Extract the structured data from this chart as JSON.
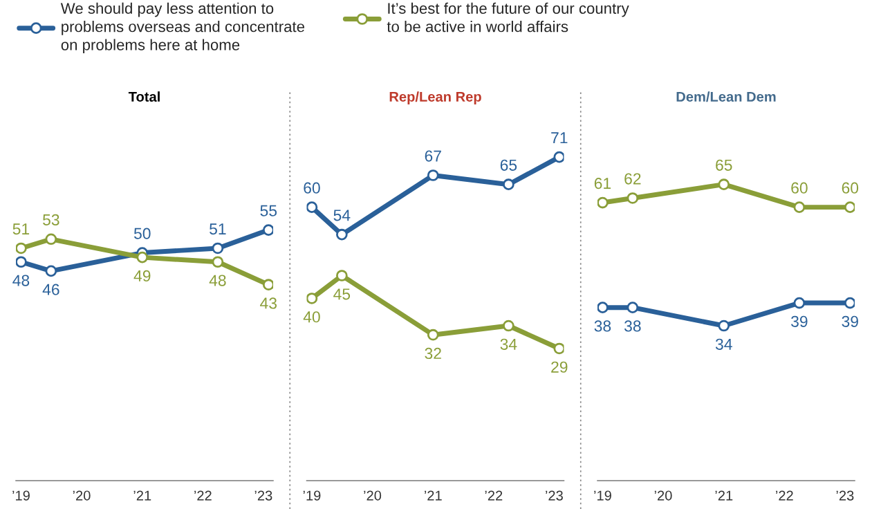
{
  "chart_data": [
    {
      "type": "line",
      "title": "Total",
      "x": [
        "2019-01",
        "2019-07",
        "2021-01",
        "2022-04",
        "2023-02"
      ],
      "series": [
        {
          "name": "We should pay less attention to\nproblems overseas and concentrate\non problems here at home",
          "color": "#2a6099",
          "values": [
            48,
            46,
            50,
            51,
            55
          ]
        },
        {
          "name": "It’s best for the future of our country\nto be active in world affairs",
          "color": "#8a9e38",
          "values": [
            51,
            53,
            49,
            48,
            43
          ]
        }
      ],
      "xlim": [
        "2018-12",
        "2023-03"
      ],
      "xticks": [
        {
          "value": "2019",
          "label": "’19"
        },
        {
          "value": "2020",
          "label": "’20"
        },
        {
          "value": "2021",
          "label": "’21"
        },
        {
          "value": "2022",
          "label": "’22"
        },
        {
          "value": "2023",
          "label": "’23"
        }
      ],
      "tick_labels": "x",
      "data_labels": true,
      "marker": "circle",
      "line_style": "solid",
      "legend": "top"
    },
    {
      "type": "line",
      "title": "Rep/Lean Rep",
      "x": [
        "2019-01",
        "2019-07",
        "2021-01",
        "2022-04",
        "2023-02"
      ],
      "series": [
        {
          "color": "#2a6099",
          "values": [
            60,
            54,
            67,
            65,
            71
          ]
        },
        {
          "color": "#8a9e38",
          "values": [
            40,
            45,
            32,
            34,
            29
          ]
        }
      ],
      "xlim": [
        "2018-12",
        "2023-03"
      ],
      "xticks": [
        {
          "value": "2019",
          "label": "’19"
        },
        {
          "value": "2020",
          "label": "’20"
        },
        {
          "value": "2021",
          "label": "’21"
        },
        {
          "value": "2022",
          "label": "’22"
        },
        {
          "value": "2023",
          "label": "’23"
        }
      ],
      "tick_labels": "x",
      "data_labels": true,
      "marker": "circle",
      "line_style": "solid"
    },
    {
      "type": "line",
      "title": "Dem/Lean Dem",
      "x": [
        "2019-01",
        "2019-07",
        "2021-01",
        "2022-04",
        "2023-02"
      ],
      "series": [
        {
          "color": "#2a6099",
          "values": [
            38,
            38,
            34,
            39,
            39
          ]
        },
        {
          "color": "#8a9e38",
          "values": [
            61,
            62,
            65,
            60,
            60
          ]
        }
      ],
      "xlim": [
        "2018-12",
        "2023-03"
      ],
      "xticks": [
        {
          "value": "2019",
          "label": "’19"
        },
        {
          "value": "2020",
          "label": "’20"
        },
        {
          "value": "2021",
          "label": "’21"
        },
        {
          "value": "2022",
          "label": "’22"
        },
        {
          "value": "2023",
          "label": "’23"
        }
      ],
      "tick_labels": "x",
      "data_labels": true,
      "marker": "circle",
      "line_style": "solid"
    }
  ]
}
